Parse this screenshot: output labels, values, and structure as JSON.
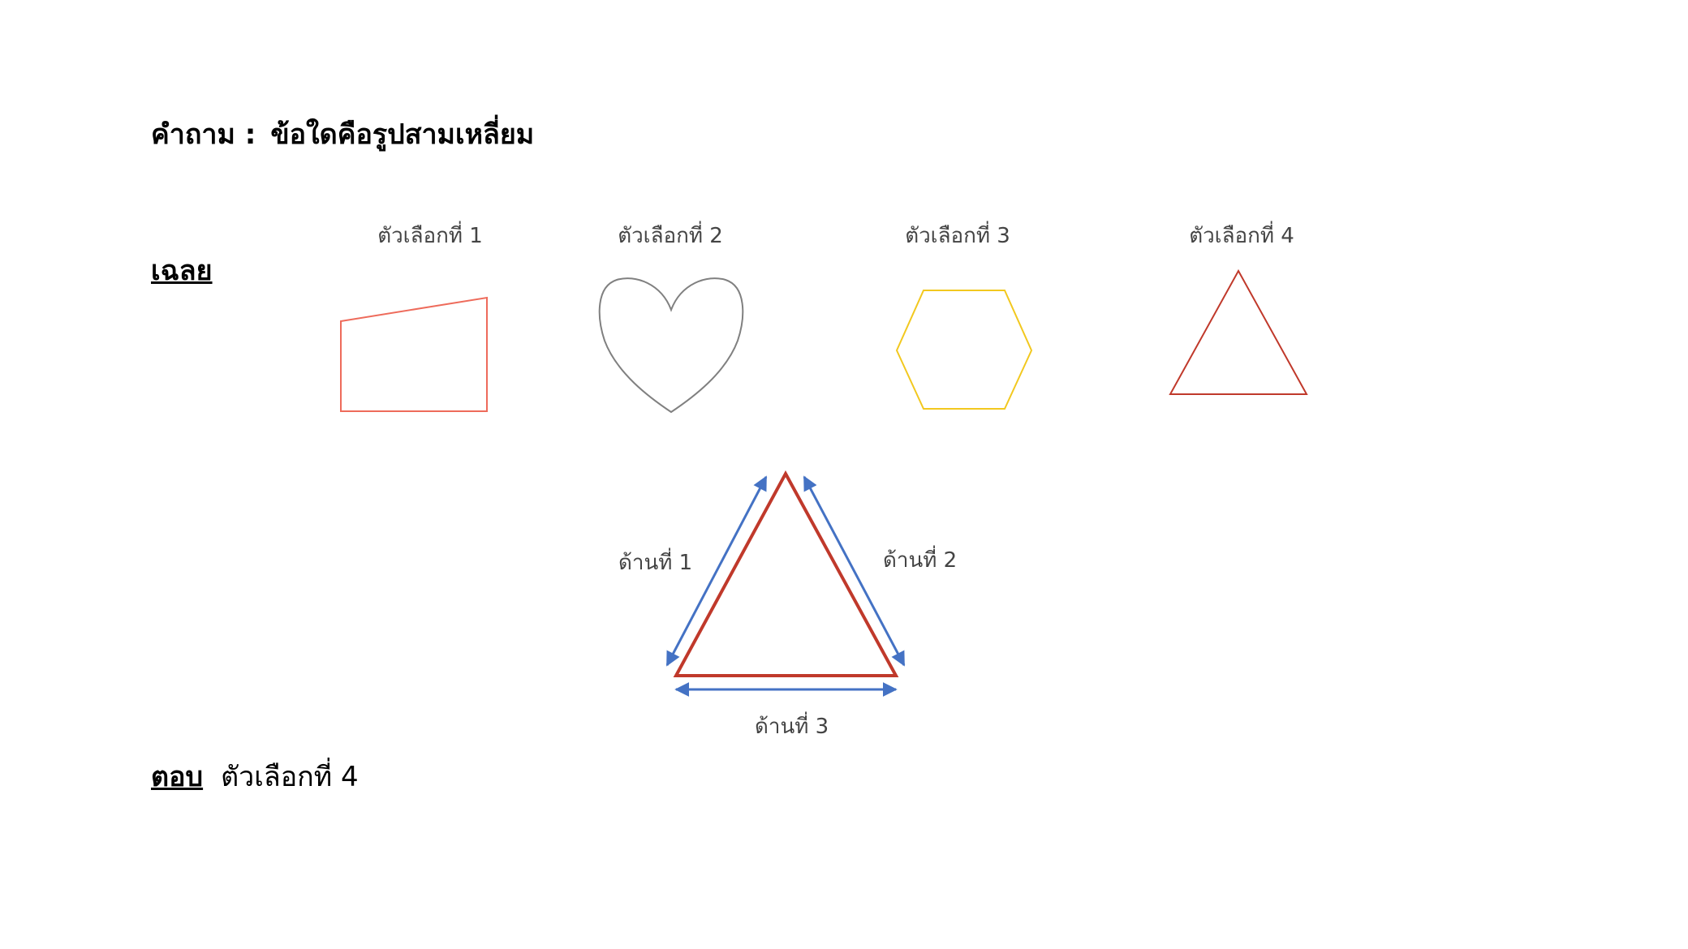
{
  "question": {
    "label": "คำถาม :",
    "text": "ข้อใดคือรูปสามเหลี่ยม"
  },
  "solution_heading": "เฉลย",
  "options": [
    {
      "label": "ตัวเลือกที่ 1",
      "shape": "quadrilateral",
      "color": "#EE6B5B"
    },
    {
      "label": "ตัวเลือกที่ 2",
      "shape": "heart",
      "color": "#808080"
    },
    {
      "label": "ตัวเลือกที่ 3",
      "shape": "hexagon",
      "color": "#F2C81F"
    },
    {
      "label": "ตัวเลือกที่ 4",
      "shape": "triangle",
      "color": "#C0392B"
    }
  ],
  "explanation": {
    "triangle_color": "#C0392B",
    "arrow_color": "#4472C4",
    "sides": [
      "ด้านที่ 1",
      "ด้านที่ 2",
      "ด้านที่ 3"
    ]
  },
  "answer": {
    "label": "ตอบ",
    "value": "ตัวเลือกที่ 4"
  }
}
